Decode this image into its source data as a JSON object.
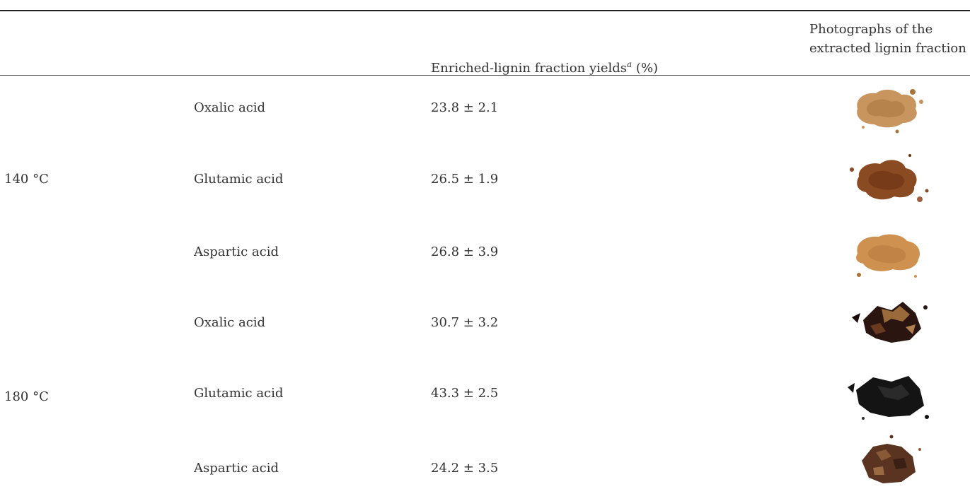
{
  "table": {
    "columns": {
      "yield_label": "Enriched-lignin fraction yields",
      "yield_superscript": "a",
      "yield_unit": " (%)",
      "photo_line1": "Photographs of the",
      "photo_line2": "extracted lignin fraction"
    },
    "groups": [
      {
        "temperature": "140 °C"
      },
      {
        "temperature": "180 °C"
      }
    ],
    "rows": [
      {
        "acid": "Oxalic acid",
        "yield": "23.8 ± 2.1",
        "photo_color": "#c8955e",
        "photo_dark": "#a8753e"
      },
      {
        "acid": "Glutamic acid",
        "yield": "26.5 ± 1.9",
        "photo_color": "#8a4a22",
        "photo_dark": "#6a3214"
      },
      {
        "acid": "Aspartic acid",
        "yield": "26.8 ± 3.9",
        "photo_color": "#cf9150",
        "photo_dark": "#b0733a"
      },
      {
        "acid": "Oxalic acid",
        "yield": "30.7 ± 3.2",
        "photo_color": "#2a1510",
        "photo_dark": "#9a6a3a"
      },
      {
        "acid": "Glutamic acid",
        "yield": "43.3 ± 2.5",
        "photo_color": "#141414",
        "photo_dark": "#2a2a2a"
      },
      {
        "acid": "Aspartic acid",
        "yield": "24.2 ± 3.5",
        "photo_color": "#5a3420",
        "photo_dark": "#8a5a36"
      }
    ]
  }
}
